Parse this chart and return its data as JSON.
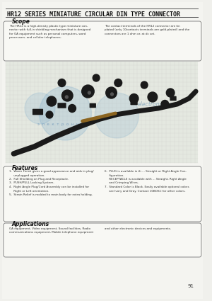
{
  "title_left": "HR12 SERIES",
  "title_right": "MINIATURE CIRCULAR DIN TYPE CONNECTOR",
  "bg_color": "#f0f0ec",
  "page_bg": "#f4f4f0",
  "box_bg": "#f8f8f4",
  "scope_heading": "Scope",
  "scope_text_left": "The HR12 is a high-density plastic type miniature con-\nnector with full-in shielding mechanism that is designed\nfor OA equipment such as personal computers, word\nprocessors, and cellular telephones.",
  "scope_text_right": "The contact terminals of the HR12 connector are tin\nplated (only 10contacts terminals are gold-plated) and the\nconnectors are 1 ohm or. at dc set.",
  "features_heading": "Features",
  "features_left": "1.  Warm Finish gives a good appearance and aids in plug/\n     unplugged operation.\n2.  Full Shielding on Plug and Receptacle.\n3.  PUSH/PULL Locking System.\n4.  Right Angle Plug/Cord Assembly can be installed for\n     Right or Left orientation.\n5.  Strain Relief is molded to main body for extra holding.",
  "features_right": "6.  PLUG is available in th ... Straight or Right Angle Con-\n     figuration.\n     RECEPTACLE is available with ... Straight, Right Angle\n     and Crimping Wires.\n7.  Standard Color is Black. Easily available optional colors\n     are Ivory and Gray. Contact 10BOSC for other colors.",
  "apps_heading": "Applications",
  "apps_left": "OA equipment, Video equipment, Sound facilities, Radio\ncommunications equipment, Mobile telephone equipment",
  "apps_right": "and other electronic devices and equipments.",
  "page_number": "91",
  "grid_color": "#cccccc",
  "grid_bg": "#e8eae4",
  "watermark_color": "#7aabcc",
  "connector_color": "#1a1a1a",
  "cable_brown": "#8B6420"
}
